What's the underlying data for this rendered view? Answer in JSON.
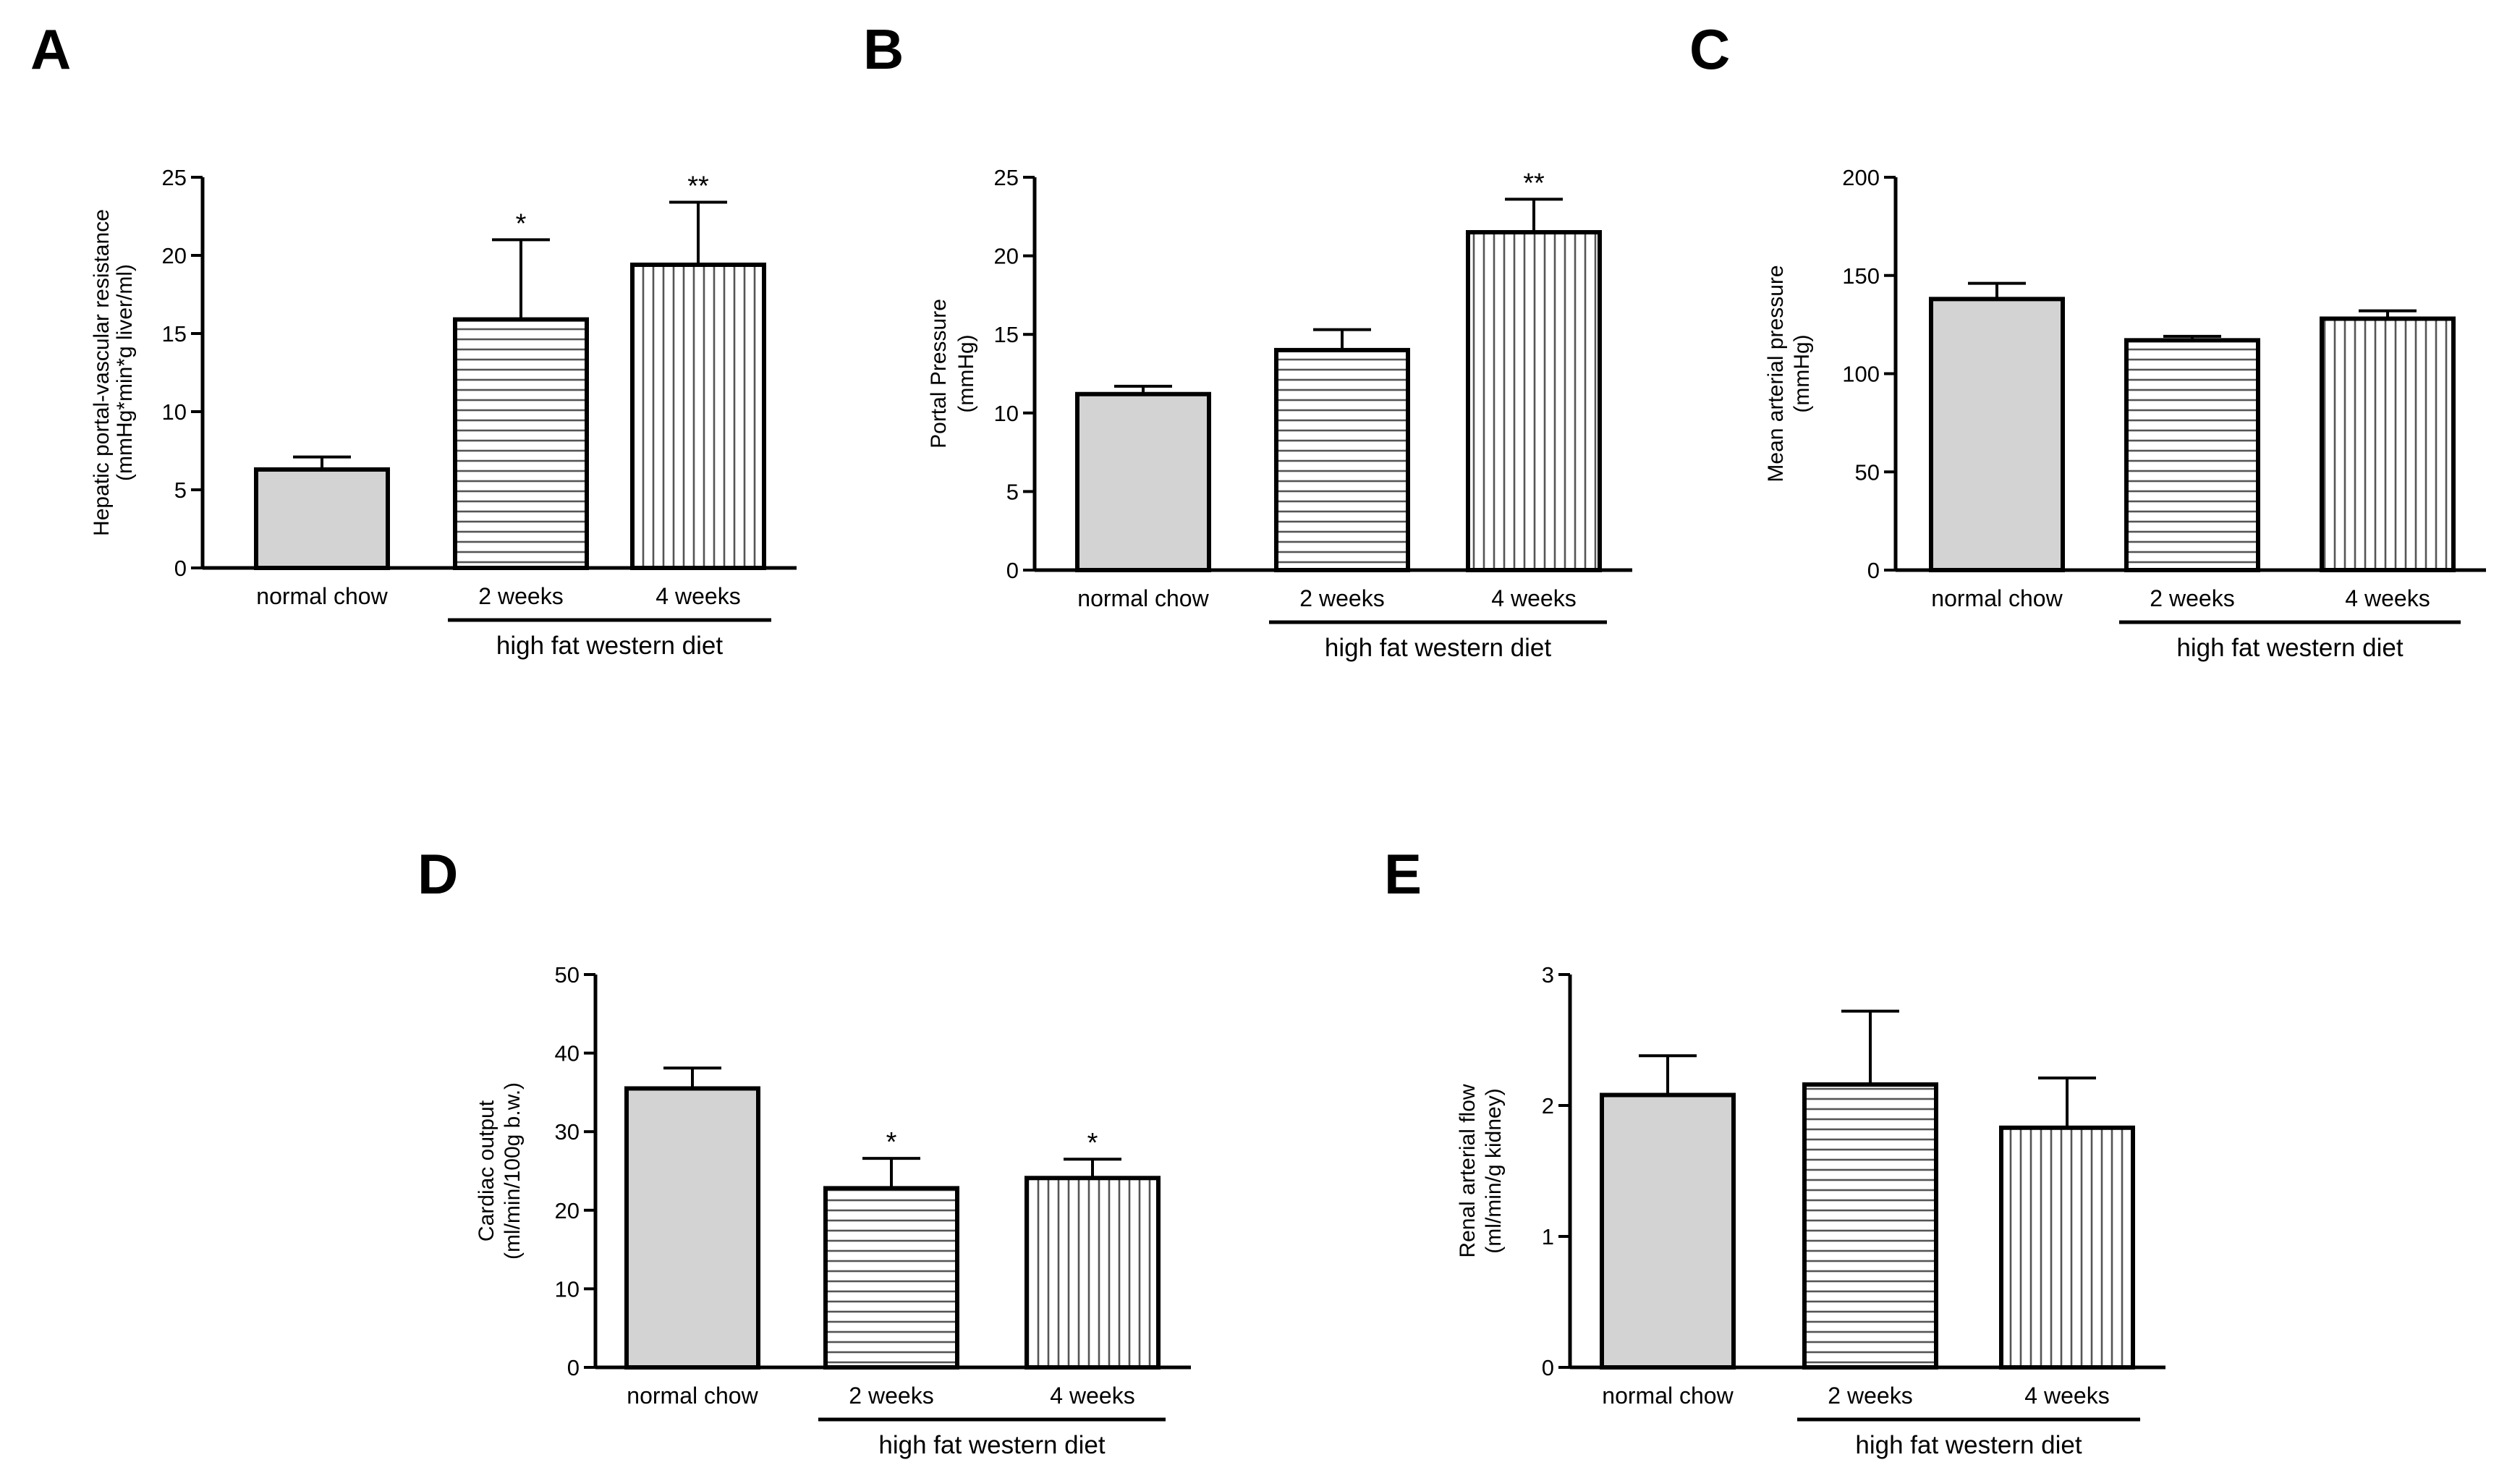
{
  "colors": {
    "axis": "#000000",
    "bar_fill": "#d3d3d3",
    "hatch": "#555555",
    "background": "#ffffff"
  },
  "chart_data": [
    {
      "panel": "A",
      "type": "bar",
      "ylabel_lines": [
        "Hepatic portal-vascular resistance",
        "(mmHg*min*g liver/ml)"
      ],
      "categories": [
        "normal chow",
        "2 weeks",
        "4 weeks"
      ],
      "patterns": [
        "solid",
        "horizontal",
        "vertical"
      ],
      "values": [
        6.3,
        15.9,
        19.4
      ],
      "errors": [
        0.8,
        5.1,
        4.0
      ],
      "significance": [
        "",
        "*",
        "**"
      ],
      "ylim": [
        0,
        25
      ],
      "yticks": [
        0,
        5,
        10,
        15,
        20,
        25
      ],
      "group_label": "high fat western diet",
      "group_span": [
        1,
        2
      ]
    },
    {
      "panel": "B",
      "type": "bar",
      "ylabel_lines": [
        "Portal Pressure",
        "(mmHg)"
      ],
      "categories": [
        "normal chow",
        "2 weeks",
        "4 weeks"
      ],
      "patterns": [
        "solid",
        "horizontal",
        "vertical"
      ],
      "values": [
        11.2,
        14.0,
        21.5
      ],
      "errors": [
        0.5,
        1.3,
        2.1
      ],
      "significance": [
        "",
        "",
        "**"
      ],
      "ylim": [
        0,
        25
      ],
      "yticks": [
        0,
        5,
        10,
        15,
        20,
        25
      ],
      "group_label": "high fat western diet",
      "group_span": [
        1,
        2
      ]
    },
    {
      "panel": "C",
      "type": "bar",
      "ylabel_lines": [
        "Mean arterial pressure",
        "(mmHg)"
      ],
      "categories": [
        "normal chow",
        "2 weeks",
        "4 weeks"
      ],
      "patterns": [
        "solid",
        "horizontal",
        "vertical"
      ],
      "values": [
        138,
        117,
        128
      ],
      "errors": [
        8,
        2,
        4
      ],
      "significance": [
        "",
        "",
        ""
      ],
      "ylim": [
        0,
        200
      ],
      "yticks": [
        0,
        50,
        100,
        150,
        200
      ],
      "group_label": "high fat western diet",
      "group_span": [
        1,
        2
      ]
    },
    {
      "panel": "D",
      "type": "bar",
      "ylabel_lines": [
        "Cardiac output",
        "(ml/min/100g b.w.)"
      ],
      "categories": [
        "normal chow",
        "2 weeks",
        "4 weeks"
      ],
      "patterns": [
        "solid",
        "horizontal",
        "vertical"
      ],
      "values": [
        35.5,
        22.8,
        24.1
      ],
      "errors": [
        2.6,
        3.8,
        2.4
      ],
      "significance": [
        "",
        "*",
        "*"
      ],
      "ylim": [
        0,
        50
      ],
      "yticks": [
        0,
        10,
        20,
        30,
        40,
        50
      ],
      "group_label": "high fat western diet",
      "group_span": [
        1,
        2
      ]
    },
    {
      "panel": "E",
      "type": "bar",
      "ylabel_lines": [
        "Renal arterial flow",
        "(ml/min/g kidney)"
      ],
      "categories": [
        "normal chow",
        "2 weeks",
        "4 weeks"
      ],
      "patterns": [
        "solid",
        "horizontal",
        "vertical"
      ],
      "values": [
        2.08,
        2.16,
        1.83
      ],
      "errors": [
        0.3,
        0.56,
        0.38
      ],
      "significance": [
        "",
        "",
        ""
      ],
      "ylim": [
        0,
        3
      ],
      "yticks": [
        0,
        1,
        2,
        3
      ],
      "group_label": "high fat western diet",
      "group_span": [
        1,
        2
      ]
    }
  ]
}
